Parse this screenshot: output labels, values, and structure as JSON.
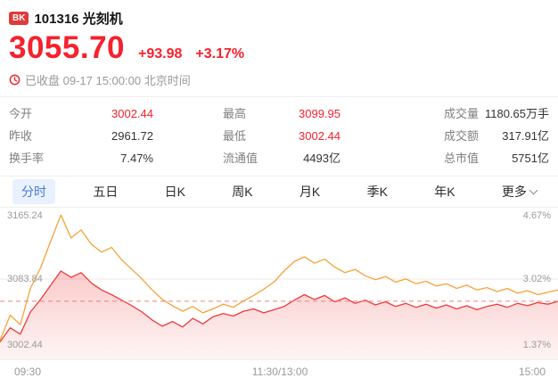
{
  "header": {
    "badge": "BK",
    "code_title": "101316 光刻机",
    "price": "3055.70",
    "change": "+93.98",
    "change_pct": "+3.17%",
    "status": "已收盘 09-17 15:00:00 北京时间"
  },
  "stats": {
    "cells": [
      {
        "label": "今开",
        "value": "3002.44"
      },
      {
        "label": "最高",
        "value": "3099.95"
      },
      {
        "label": "成交量",
        "value": "1180.65万手"
      },
      {
        "label": "昨收",
        "value": "2961.72"
      },
      {
        "label": "最低",
        "value": "3002.44"
      },
      {
        "label": "成交额",
        "value": "317.91亿"
      },
      {
        "label": "换手率",
        "value": "7.47%"
      },
      {
        "label": "流通值",
        "value": "4493亿"
      },
      {
        "label": "总市值",
        "value": "5751亿"
      }
    ]
  },
  "tabs": [
    {
      "label": "分时",
      "active": true
    },
    {
      "label": "五日"
    },
    {
      "label": "日K"
    },
    {
      "label": "周K"
    },
    {
      "label": "月K"
    },
    {
      "label": "季K"
    },
    {
      "label": "年K"
    },
    {
      "label": "更多"
    }
  ],
  "colors": {
    "up_red": "#f5222d",
    "red_line": "#ef3a3a",
    "orange_line": "#f7a237",
    "area_fill": "#f05050",
    "dashed_line": "#f08080",
    "tab_active_blue": "#4a7bd5",
    "muted_text": "#999999"
  },
  "chart_data": {
    "type": "line",
    "title": "分时",
    "x_axis_labels": [
      "09:30",
      "11:30/13:00",
      "15:00"
    ],
    "y_axis_left": [
      "3165.24",
      "3083.84",
      "3002.44"
    ],
    "y_axis_right": [
      "4.67%",
      "3.02%",
      "1.37%"
    ],
    "ylim": [
      3002.44,
      3165.24
    ],
    "current_value": 3055.7,
    "prev_close": 2961.72,
    "grid": "minimal",
    "legend": "none",
    "series": [
      {
        "name": "series-red",
        "color": "#ef3a3a",
        "values": [
          3004,
          3022,
          3014,
          3042,
          3058,
          3076,
          3094,
          3086,
          3092,
          3079,
          3070,
          3064,
          3057,
          3050,
          3042,
          3032,
          3024,
          3030,
          3023,
          3034,
          3027,
          3036,
          3040,
          3037,
          3043,
          3046,
          3041,
          3045,
          3049,
          3057,
          3064,
          3058,
          3063,
          3055,
          3060,
          3053,
          3057,
          3051,
          3055,
          3049,
          3053,
          3048,
          3052,
          3047,
          3051,
          3046,
          3050,
          3045,
          3049,
          3052,
          3048,
          3053,
          3050,
          3054,
          3052,
          3055.7
        ]
      },
      {
        "name": "series-orange",
        "color": "#f7a237",
        "values": [
          3006,
          3038,
          3026,
          3072,
          3098,
          3132,
          3165,
          3136,
          3146,
          3128,
          3118,
          3124,
          3108,
          3096,
          3084,
          3070,
          3058,
          3050,
          3043,
          3049,
          3041,
          3046,
          3052,
          3048,
          3056,
          3063,
          3071,
          3080,
          3094,
          3106,
          3112,
          3104,
          3109,
          3099,
          3092,
          3096,
          3088,
          3083,
          3087,
          3080,
          3084,
          3078,
          3081,
          3075,
          3078,
          3072,
          3076,
          3070,
          3073,
          3068,
          3072,
          3066,
          3069,
          3064,
          3067,
          3070
        ]
      }
    ]
  }
}
